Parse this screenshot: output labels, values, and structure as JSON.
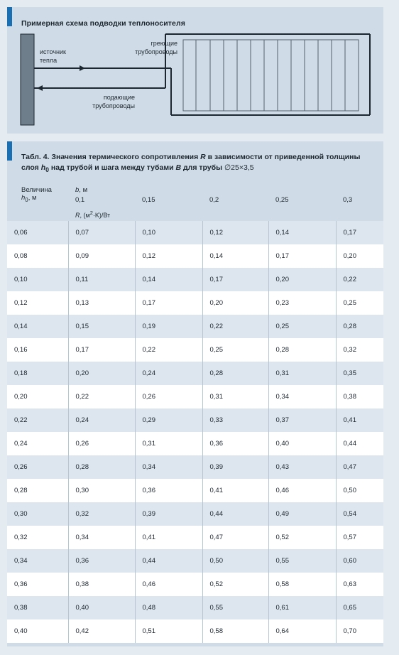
{
  "diagram": {
    "title": "Примерная схема подводки теплоносителя",
    "source_label": [
      "источник",
      "тепла"
    ],
    "heating_label": [
      "греющие",
      "трубопроводы"
    ],
    "supply_label": [
      "подающие",
      "трубопроводы"
    ]
  },
  "table": {
    "caption_prefix": "Табл. 4. Значения термического сопротивления ",
    "caption_R": "R",
    "caption_mid1": " в зависимости от приведенной толщины слоя ",
    "caption_h": "h",
    "caption_h_sub": "0",
    "caption_mid2": " над трубой и шага между тубами ",
    "caption_B": "B",
    "caption_mid3": " для трубы ",
    "caption_pipe": "∅25×3,5",
    "header_h_label1": "Величина",
    "header_h_label2_var": "h",
    "header_h_label2_sub": "0",
    "header_h_label2_unit": ", м",
    "header_b_var": "b",
    "header_b_unit": ", м",
    "header_steps": [
      "0,1",
      "0,15",
      "0,2",
      "0,25",
      "0,3"
    ],
    "header_R_var": "R",
    "header_R_unit_a": ", (м",
    "header_R_unit_sup": "2",
    "header_R_unit_b": "·K)/Вт",
    "rows": [
      [
        "0,06",
        "0,07",
        "0,10",
        "0,12",
        "0,14",
        "0,17"
      ],
      [
        "0,08",
        "0,09",
        "0,12",
        "0,14",
        "0,17",
        "0,20"
      ],
      [
        "0,10",
        "0,11",
        "0,14",
        "0,17",
        "0,20",
        "0,22"
      ],
      [
        "0,12",
        "0,13",
        "0,17",
        "0,20",
        "0,23",
        "0,25"
      ],
      [
        "0,14",
        "0,15",
        "0,19",
        "0,22",
        "0,25",
        "0,28"
      ],
      [
        "0,16",
        "0,17",
        "0,22",
        "0,25",
        "0,28",
        "0,32"
      ],
      [
        "0,18",
        "0,20",
        "0,24",
        "0,28",
        "0,31",
        "0,35"
      ],
      [
        "0,20",
        "0,22",
        "0,26",
        "0,31",
        "0,34",
        "0,38"
      ],
      [
        "0,22",
        "0,24",
        "0,29",
        "0,33",
        "0,37",
        "0,41"
      ],
      [
        "0,24",
        "0,26",
        "0,31",
        "0,36",
        "0,40",
        "0,44"
      ],
      [
        "0,26",
        "0,28",
        "0,34",
        "0,39",
        "0,43",
        "0,47"
      ],
      [
        "0,28",
        "0,30",
        "0,36",
        "0,41",
        "0,46",
        "0,50"
      ],
      [
        "0,30",
        "0,32",
        "0,39",
        "0,44",
        "0,49",
        "0,54"
      ],
      [
        "0,32",
        "0,34",
        "0,41",
        "0,47",
        "0,52",
        "0,57"
      ],
      [
        "0,34",
        "0,36",
        "0,44",
        "0,50",
        "0,55",
        "0,60"
      ],
      [
        "0,36",
        "0,38",
        "0,46",
        "0,52",
        "0,58",
        "0,63"
      ],
      [
        "0,38",
        "0,40",
        "0,48",
        "0,55",
        "0,61",
        "0,65"
      ],
      [
        "0,40",
        "0,42",
        "0,51",
        "0,58",
        "0,64",
        "0,70"
      ]
    ]
  }
}
